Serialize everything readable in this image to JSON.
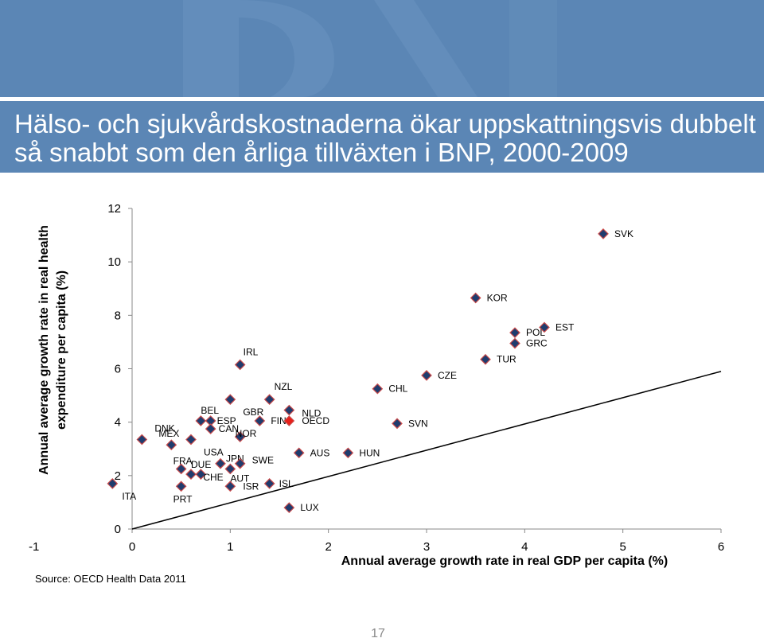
{
  "slide": {
    "title_line_1": "Hälso- och sjukvårdskostnaderna  ökar uppskattningsvis dubbelt",
    "title_line_2": "så snabbt som den årliga tillväxten i BNP, 2000-2009",
    "source": "Source: OECD Health Data 2011",
    "page_number": "17",
    "banner_color": "#5b86b5"
  },
  "chart_data": {
    "type": "scatter",
    "xlabel": "Annual average growth rate in real GDP per capita (%)",
    "ylabel_lines": [
      "Annual average growth rate in real health",
      "expenditure per capita (%)"
    ],
    "xlim": [
      -1,
      6
    ],
    "ylim": [
      0,
      12
    ],
    "x_ticks": [
      -1,
      0,
      1,
      2,
      3,
      4,
      5,
      6
    ],
    "y_ticks": [
      0,
      2,
      4,
      6,
      8,
      10,
      12
    ],
    "marker_color": "#1f3c6e",
    "highlight_color": "#e8201a",
    "trend_line": {
      "from": [
        0,
        0
      ],
      "to": [
        6,
        5.9
      ]
    },
    "points": [
      {
        "label": "ITA",
        "x": -0.2,
        "y": 1.7
      },
      {
        "label": "DNK",
        "x": 0.1,
        "y": 3.35
      },
      {
        "label": "MEX",
        "x": 0.4,
        "y": 3.15
      },
      {
        "label": "PRT",
        "x": 0.5,
        "y": 1.6
      },
      {
        "label": "FRA",
        "x": 0.5,
        "y": 2.25
      },
      {
        "label": "DUE",
        "x": 0.6,
        "y": 2.05
      },
      {
        "label": "CHE",
        "x": 0.7,
        "y": 2.05
      },
      {
        "label": "USA",
        "x": 0.6,
        "y": 3.35
      },
      {
        "label": "BEL",
        "x": 0.7,
        "y": 4.05
      },
      {
        "label": "ESP",
        "x": 0.8,
        "y": 4.05
      },
      {
        "label": "CAN",
        "x": 0.8,
        "y": 3.75
      },
      {
        "label": "JPN",
        "x": 0.9,
        "y": 2.45
      },
      {
        "label": "AUT",
        "x": 1.0,
        "y": 2.25
      },
      {
        "label": "ISR",
        "x": 1.0,
        "y": 1.6
      },
      {
        "label": "NOR",
        "x": 1.1,
        "y": 3.45
      },
      {
        "label": "SWE",
        "x": 1.1,
        "y": 2.45
      },
      {
        "label": "GBR",
        "x": 1.0,
        "y": 4.85
      },
      {
        "label": "IRL",
        "x": 1.1,
        "y": 6.15
      },
      {
        "label": "FIN",
        "x": 1.3,
        "y": 4.05
      },
      {
        "label": "NZL",
        "x": 1.4,
        "y": 4.85
      },
      {
        "label": "ISL",
        "x": 1.4,
        "y": 1.7
      },
      {
        "label": "LUX",
        "x": 1.6,
        "y": 0.8
      },
      {
        "label": "NLD",
        "x": 1.6,
        "y": 4.45
      },
      {
        "label": "OECD",
        "x": 1.6,
        "y": 4.05,
        "highlight": true
      },
      {
        "label": "AUS",
        "x": 1.7,
        "y": 2.85
      },
      {
        "label": "HUN",
        "x": 2.2,
        "y": 2.85
      },
      {
        "label": "CHL",
        "x": 2.5,
        "y": 5.25
      },
      {
        "label": "SVN",
        "x": 2.7,
        "y": 3.95
      },
      {
        "label": "CZE",
        "x": 3.0,
        "y": 5.75
      },
      {
        "label": "KOR",
        "x": 3.5,
        "y": 8.65
      },
      {
        "label": "TUR",
        "x": 3.6,
        "y": 6.35
      },
      {
        "label": "POL",
        "x": 3.9,
        "y": 7.35
      },
      {
        "label": "GRC",
        "x": 3.9,
        "y": 6.95
      },
      {
        "label": "EST",
        "x": 4.2,
        "y": 7.55
      },
      {
        "label": "SVK",
        "x": 4.8,
        "y": 11.05
      }
    ]
  }
}
